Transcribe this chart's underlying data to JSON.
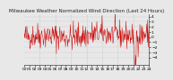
{
  "title": "Milwaukee Weather Normalized Wind Direction (Last 24 Hours)",
  "background_color": "#e8e8e8",
  "plot_bg_color": "#e8e8e8",
  "line_color": "#cc0000",
  "grid_color": "#aaaaaa",
  "num_points": 288,
  "ylim": [
    -5.5,
    4.5
  ],
  "yticks": [
    -4,
    -3,
    -2,
    -1,
    0,
    1,
    2,
    3,
    4
  ],
  "title_fontsize": 4.0,
  "tick_fontsize": 3.2,
  "num_xticks": 25
}
